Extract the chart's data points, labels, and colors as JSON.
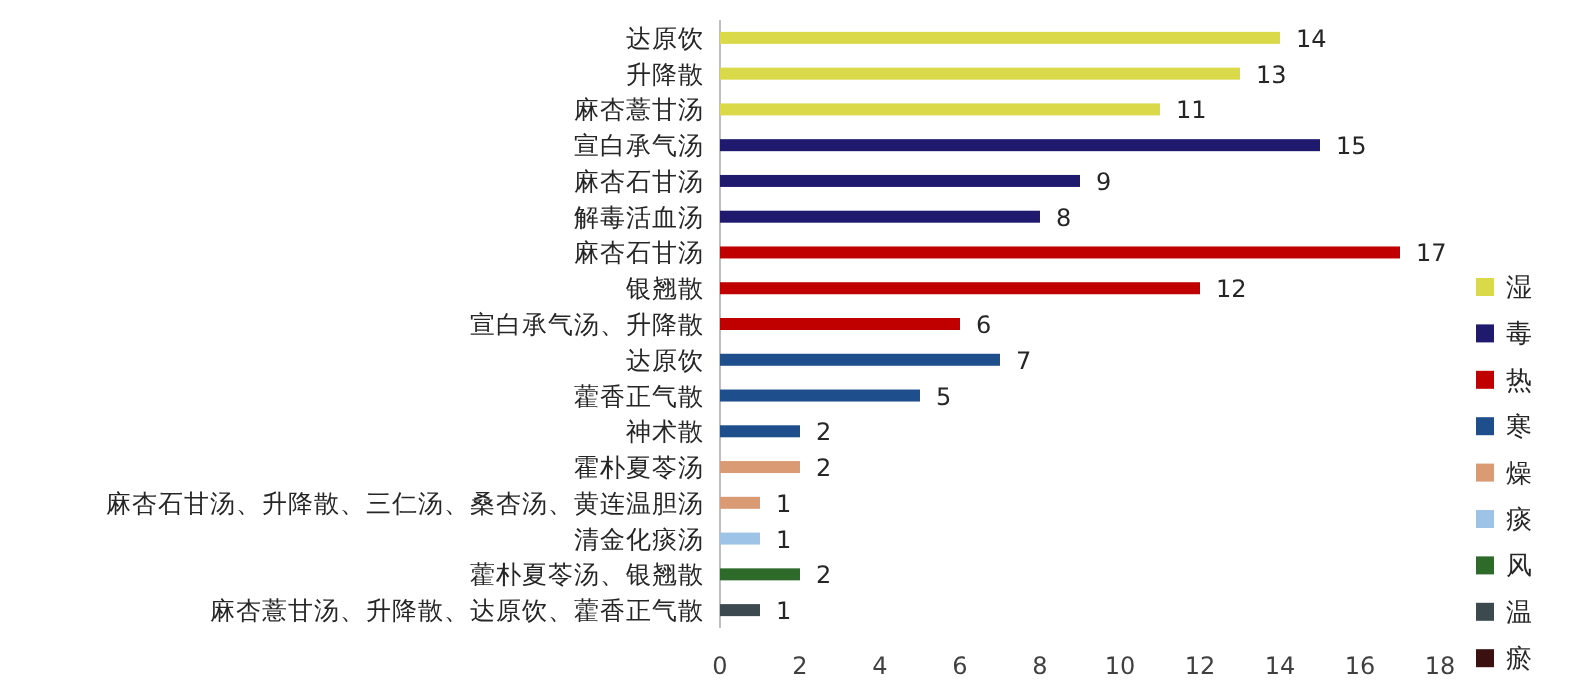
{
  "chart_data": {
    "type": "bar",
    "orientation": "horizontal",
    "categories": [
      "达原饮",
      "升降散",
      "麻杏薏甘汤",
      "宣白承气汤",
      "麻杏石甘汤",
      "解毒活血汤",
      "麻杏石甘汤",
      "银翘散",
      "宣白承气汤、升降散",
      "达原饮",
      "藿香正气散",
      "神术散",
      "霍朴夏苓汤",
      "麻杏石甘汤、升降散、三仁汤、桑杏汤、黄连温胆汤",
      "清金化痰汤",
      "藿朴夏苓汤、银翘散",
      "麻杏薏甘汤、升降散、达原饮、藿香正气散"
    ],
    "series": [
      {
        "name": "湿",
        "color": "#d9d94a",
        "values": [
          14,
          13,
          11,
          null,
          null,
          null,
          null,
          null,
          null,
          null,
          null,
          null,
          null,
          null,
          null,
          null,
          null
        ]
      },
      {
        "name": "毒",
        "color": "#1f1a6e",
        "values": [
          null,
          null,
          null,
          15,
          9,
          8,
          null,
          null,
          null,
          null,
          null,
          null,
          null,
          null,
          null,
          null,
          null
        ]
      },
      {
        "name": "热",
        "color": "#c00000",
        "values": [
          null,
          null,
          null,
          null,
          null,
          null,
          17,
          12,
          6,
          null,
          null,
          null,
          null,
          null,
          null,
          null,
          null
        ]
      },
      {
        "name": "寒",
        "color": "#1f4e8c",
        "values": [
          null,
          null,
          null,
          null,
          null,
          null,
          null,
          null,
          null,
          7,
          5,
          2,
          null,
          null,
          null,
          null,
          null
        ]
      },
      {
        "name": "燥",
        "color": "#d99a74",
        "values": [
          null,
          null,
          null,
          null,
          null,
          null,
          null,
          null,
          null,
          null,
          null,
          null,
          2,
          1,
          null,
          null,
          null
        ]
      },
      {
        "name": "痰",
        "color": "#9dc3e6",
        "values": [
          null,
          null,
          null,
          null,
          null,
          null,
          null,
          null,
          null,
          null,
          null,
          null,
          null,
          null,
          1,
          null,
          null
        ]
      },
      {
        "name": "风",
        "color": "#2e6b2a",
        "values": [
          null,
          null,
          null,
          null,
          null,
          null,
          null,
          null,
          null,
          null,
          null,
          null,
          null,
          null,
          null,
          2,
          null
        ]
      },
      {
        "name": "温",
        "color": "#3c4a50",
        "values": [
          null,
          null,
          null,
          null,
          null,
          null,
          null,
          null,
          null,
          null,
          null,
          null,
          null,
          null,
          null,
          null,
          1
        ]
      },
      {
        "name": "瘀",
        "color": "#3a1010",
        "values": [
          null,
          null,
          null,
          null,
          null,
          null,
          null,
          null,
          null,
          null,
          null,
          null,
          null,
          null,
          null,
          null,
          null
        ]
      }
    ],
    "xlim": [
      0,
      18
    ],
    "xticks": [
      0,
      2,
      4,
      6,
      8,
      10,
      12,
      14,
      16,
      18
    ],
    "data_labels": true,
    "legend": "right"
  }
}
